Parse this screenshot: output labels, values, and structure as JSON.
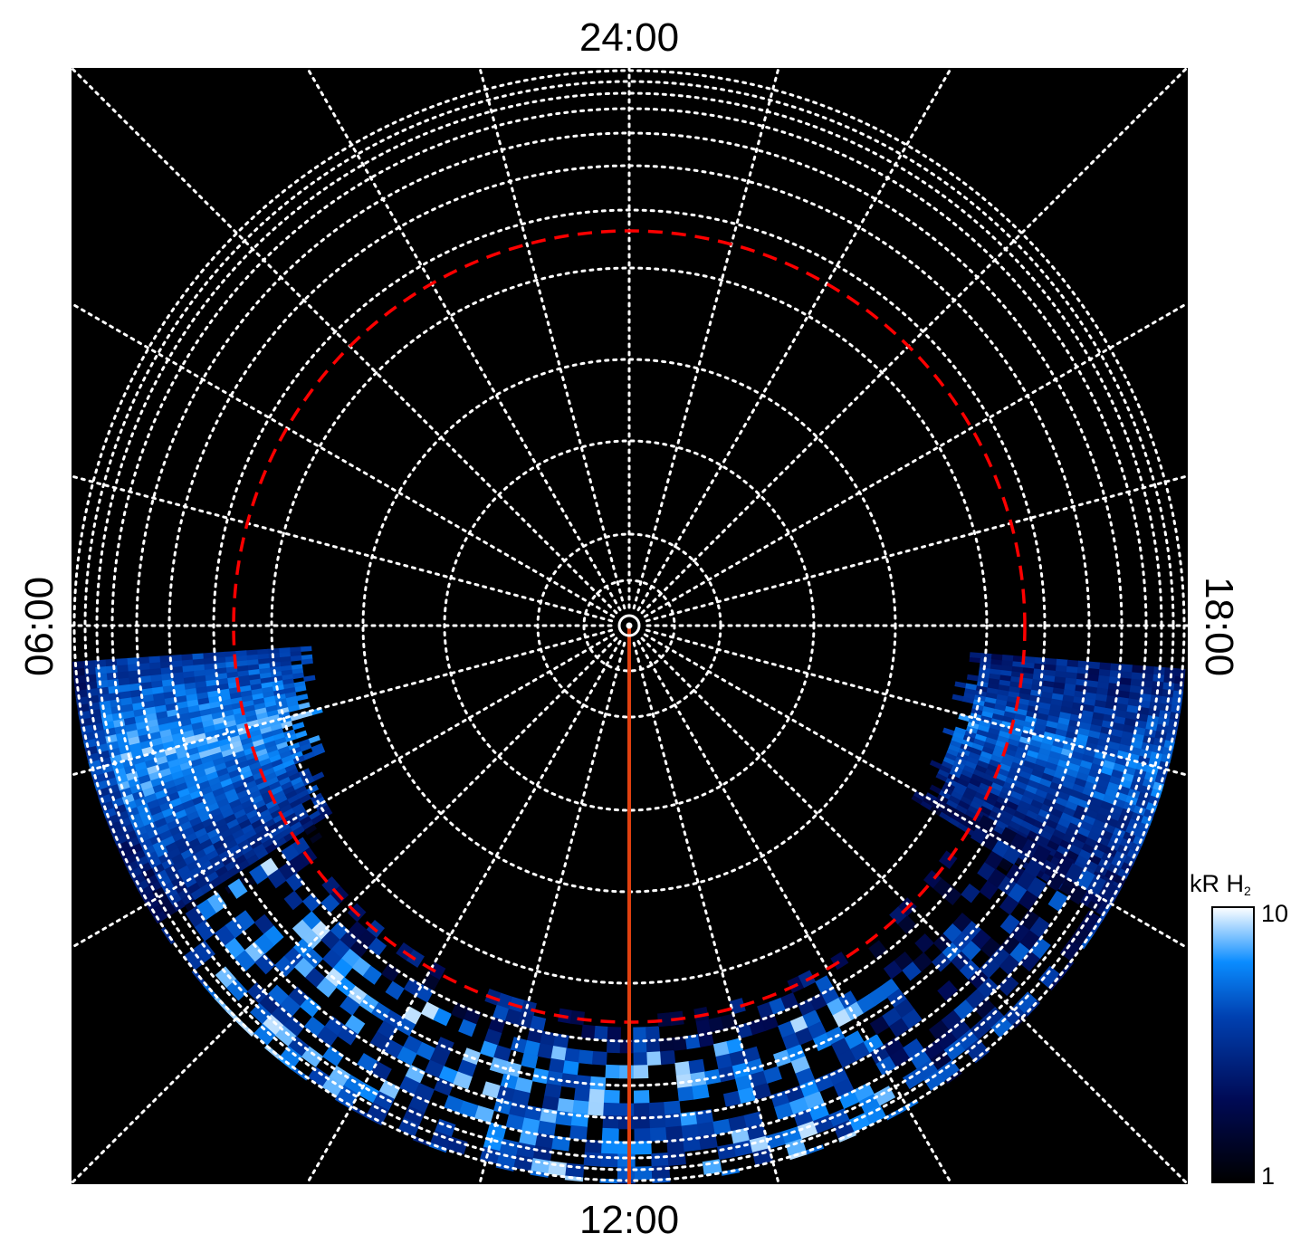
{
  "chart_data": {
    "type": "heatmap",
    "projection": "polar",
    "axis_labels": {
      "top": "24:00",
      "left": "06:00",
      "bottom": "12:00",
      "right": "18:00"
    },
    "meridian_step_hours": 1,
    "colorbar": {
      "title_main": "kR H",
      "title_sub": "2",
      "ticks": [
        "10",
        "1"
      ],
      "range": [
        1,
        10
      ],
      "scale": "log",
      "colors": [
        "#000000",
        "#000a55",
        "#0040b0",
        "#0a8cff",
        "#ffffff"
      ]
    },
    "reference_circle_color": "#ff0000",
    "meridian_line_color": "#e04010",
    "meridian_line_time": "12:00",
    "grid": true,
    "background": "#000000"
  }
}
